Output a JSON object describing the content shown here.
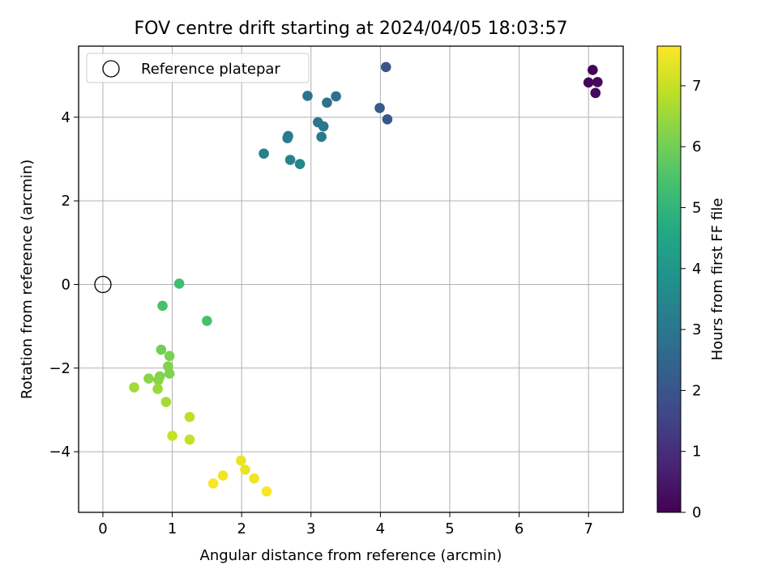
{
  "chart_data": {
    "type": "scatter",
    "title": "FOV centre drift starting at 2024/04/05 18:03:57",
    "xlabel": "Angular distance from reference (arcmin)",
    "ylabel": "Rotation from reference (arcmin)",
    "xlim": [
      -0.35,
      7.5
    ],
    "ylim": [
      -5.45,
      5.7
    ],
    "xticks": [
      0,
      1,
      2,
      3,
      4,
      5,
      6,
      7
    ],
    "yticks": [
      -4,
      -2,
      0,
      2,
      4
    ],
    "xtick_labels": [
      "0",
      "1",
      "2",
      "3",
      "4",
      "5",
      "6",
      "7"
    ],
    "ytick_labels": [
      "−4",
      "−2",
      "0",
      "2",
      "4"
    ],
    "grid": true,
    "legend": {
      "position": "top-left",
      "entries": [
        "Reference platepar"
      ]
    },
    "reference_point": {
      "x": 0,
      "y": 0
    },
    "colorbar": {
      "label": "Hours from first FF file",
      "range": [
        0,
        7.65
      ],
      "ticks": [
        0,
        1,
        2,
        3,
        4,
        5,
        6,
        7
      ],
      "tick_labels": [
        "0",
        "1",
        "2",
        "3",
        "4",
        "5",
        "6",
        "7"
      ],
      "colormap": "viridis"
    },
    "points": [
      {
        "x": 7.06,
        "y": 5.13,
        "c": 0.05
      },
      {
        "x": 7.0,
        "y": 4.83,
        "c": 0.1
      },
      {
        "x": 7.13,
        "y": 4.84,
        "c": 0.15
      },
      {
        "x": 7.1,
        "y": 4.58,
        "c": 0.2
      },
      {
        "x": 4.08,
        "y": 5.2,
        "c": 2.0
      },
      {
        "x": 4.1,
        "y": 3.95,
        "c": 2.1
      },
      {
        "x": 3.99,
        "y": 4.22,
        "c": 2.2
      },
      {
        "x": 3.36,
        "y": 4.5,
        "c": 2.8
      },
      {
        "x": 2.95,
        "y": 4.51,
        "c": 2.9
      },
      {
        "x": 3.23,
        "y": 4.35,
        "c": 2.9
      },
      {
        "x": 3.1,
        "y": 3.88,
        "c": 3.0
      },
      {
        "x": 3.18,
        "y": 3.78,
        "c": 3.0
      },
      {
        "x": 3.15,
        "y": 3.53,
        "c": 3.1
      },
      {
        "x": 2.67,
        "y": 3.55,
        "c": 3.1
      },
      {
        "x": 2.66,
        "y": 3.5,
        "c": 3.2
      },
      {
        "x": 2.32,
        "y": 3.13,
        "c": 3.3
      },
      {
        "x": 2.7,
        "y": 2.98,
        "c": 3.4
      },
      {
        "x": 2.84,
        "y": 2.88,
        "c": 3.5
      },
      {
        "x": 1.1,
        "y": 0.02,
        "c": 5.3
      },
      {
        "x": 0.86,
        "y": -0.51,
        "c": 5.4
      },
      {
        "x": 1.5,
        "y": -0.87,
        "c": 5.4
      },
      {
        "x": 0.84,
        "y": -1.56,
        "c": 6.0
      },
      {
        "x": 0.96,
        "y": -1.71,
        "c": 6.1
      },
      {
        "x": 0.94,
        "y": -1.96,
        "c": 6.2
      },
      {
        "x": 0.96,
        "y": -2.13,
        "c": 6.2
      },
      {
        "x": 0.82,
        "y": -2.2,
        "c": 6.2
      },
      {
        "x": 0.66,
        "y": -2.25,
        "c": 6.3
      },
      {
        "x": 0.8,
        "y": -2.29,
        "c": 6.3
      },
      {
        "x": 0.79,
        "y": -2.5,
        "c": 6.5
      },
      {
        "x": 0.45,
        "y": -2.46,
        "c": 6.6
      },
      {
        "x": 0.91,
        "y": -2.81,
        "c": 6.6
      },
      {
        "x": 1.25,
        "y": -3.17,
        "c": 6.9
      },
      {
        "x": 1.0,
        "y": -3.62,
        "c": 7.0
      },
      {
        "x": 1.25,
        "y": -3.71,
        "c": 7.0
      },
      {
        "x": 1.99,
        "y": -4.21,
        "c": 7.4
      },
      {
        "x": 2.05,
        "y": -4.43,
        "c": 7.4
      },
      {
        "x": 1.73,
        "y": -4.57,
        "c": 7.5
      },
      {
        "x": 2.18,
        "y": -4.64,
        "c": 7.5
      },
      {
        "x": 1.59,
        "y": -4.76,
        "c": 7.6
      },
      {
        "x": 2.36,
        "y": -4.95,
        "c": 7.6
      }
    ]
  }
}
